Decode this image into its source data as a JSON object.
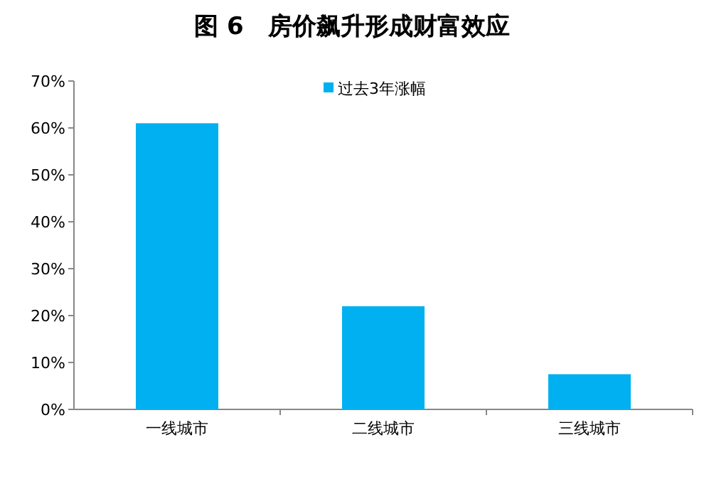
{
  "chart_data": {
    "type": "bar",
    "title": "图 6　房价飙升形成财富效应",
    "categories": [
      "一线城市",
      "二线城市",
      "三线城市"
    ],
    "series": [
      {
        "name": "过去3年涨幅",
        "color": "#00b0f0",
        "values": [
          61,
          22,
          7.5
        ]
      }
    ],
    "ylim": [
      0,
      70
    ],
    "yticks": [
      {
        "value": 0,
        "label": "0%"
      },
      {
        "value": 10,
        "label": "10%"
      },
      {
        "value": 20,
        "label": "20%"
      },
      {
        "value": 30,
        "label": "30%"
      },
      {
        "value": 40,
        "label": "40%"
      },
      {
        "value": 50,
        "label": "50%"
      },
      {
        "value": 60,
        "label": "60%"
      },
      {
        "value": 70,
        "label": "70%"
      }
    ],
    "legend": "top"
  }
}
